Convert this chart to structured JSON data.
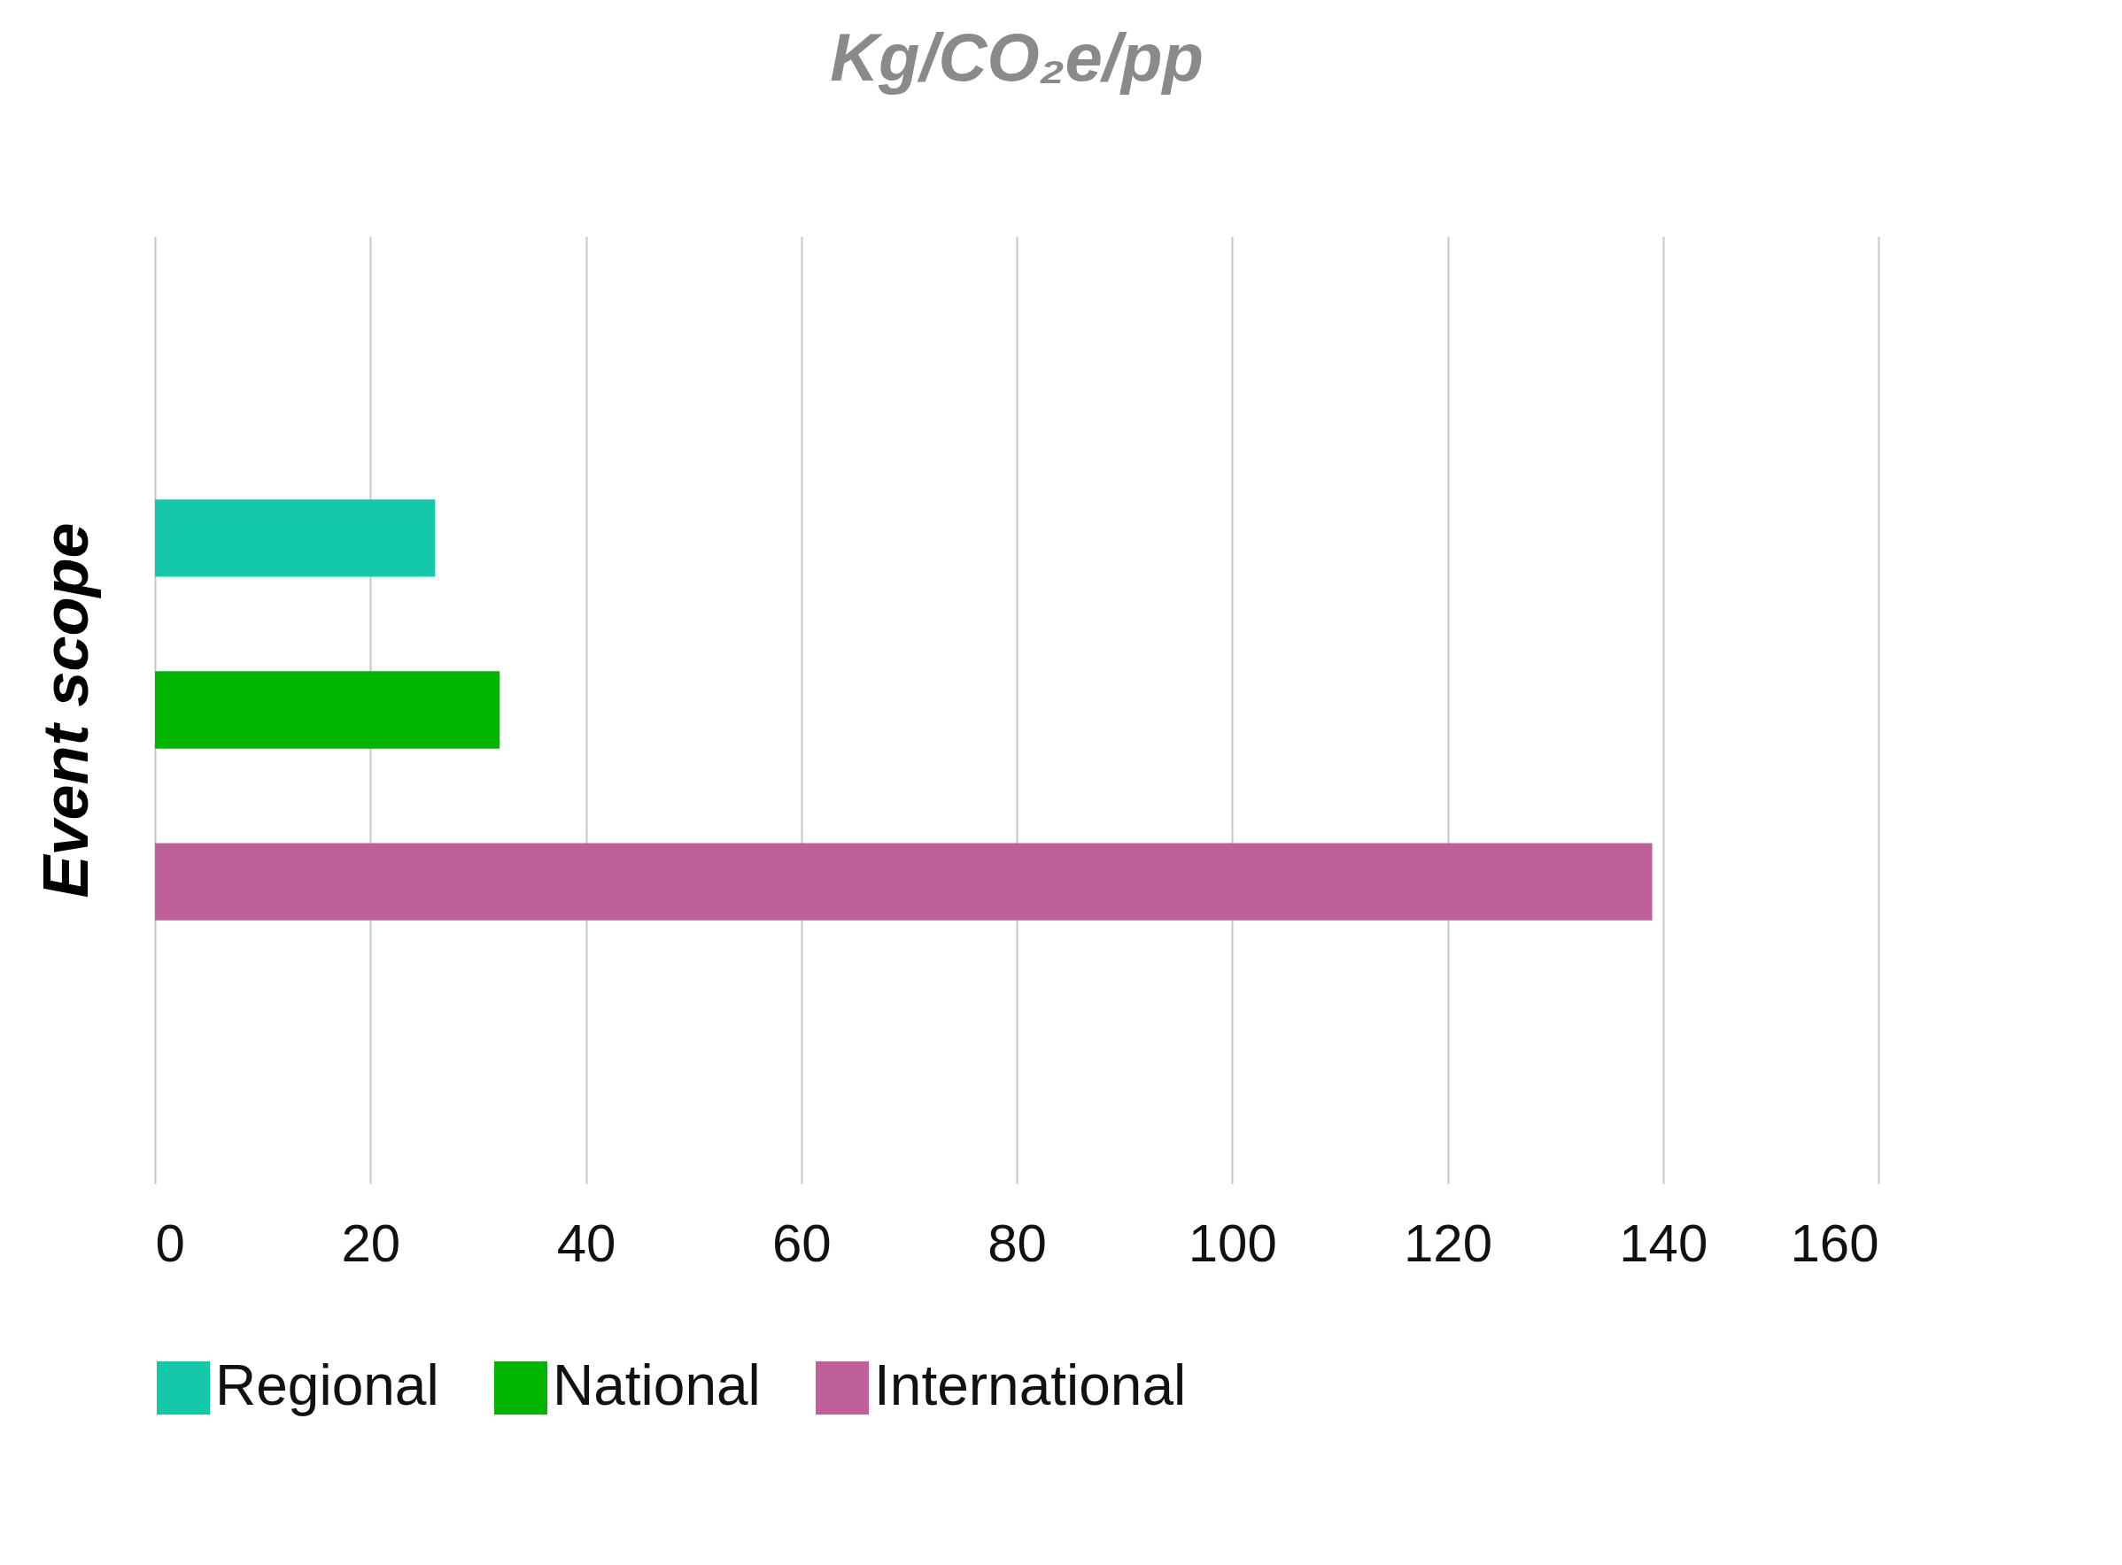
{
  "chart_data": {
    "type": "bar",
    "orientation": "horizontal",
    "title": "Kg/CO₂e/pp",
    "ylabel": "Event scope",
    "categories": [
      null
    ],
    "series": [
      {
        "name": "Regional",
        "color": "#14c8aa",
        "values": [
          26
        ]
      },
      {
        "name": "National",
        "color": "#00b400",
        "values": [
          32
        ]
      },
      {
        "name": "International",
        "color": "#c0609b",
        "values": [
          139
        ]
      }
    ],
    "xlim": [
      0,
      160
    ],
    "xticks": [
      0,
      20,
      40,
      60,
      80,
      100,
      120,
      140,
      160
    ],
    "grid": "x",
    "legend": "bottom"
  }
}
